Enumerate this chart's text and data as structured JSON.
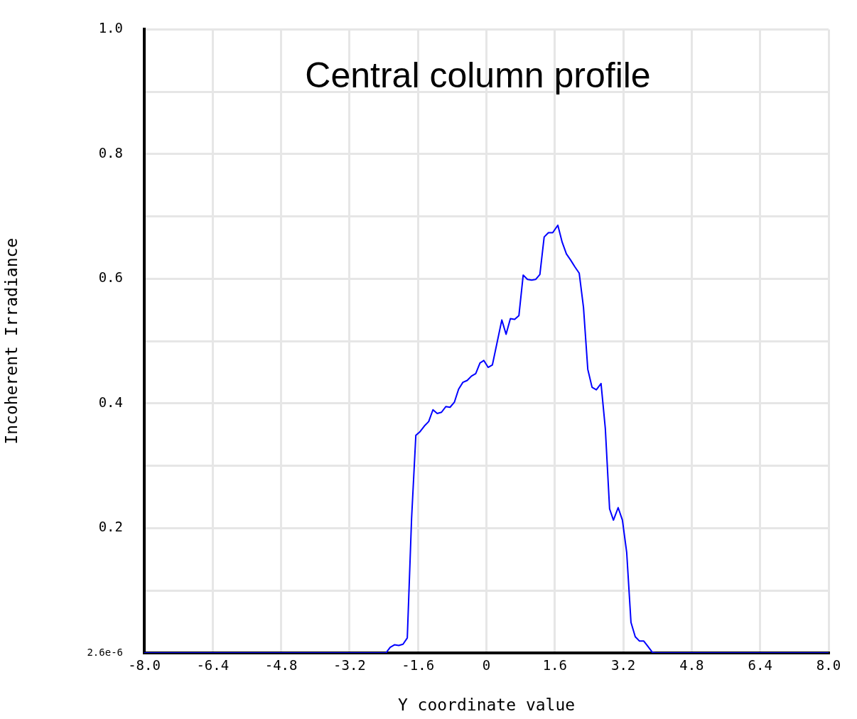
{
  "chart_data": {
    "type": "line",
    "title": "Central column profile",
    "xlabel": "Y coordinate value",
    "ylabel": "Incoherent Irradiance",
    "x": [
      -8,
      -2.35,
      -2.25,
      -2.15,
      -2.05,
      -1.95,
      -1.85,
      -1.75,
      -1.65,
      -1.55,
      -1.45,
      -1.35,
      -1.25,
      -1.15,
      -1.05,
      -0.95,
      -0.85,
      -0.75,
      -0.65,
      -0.55,
      -0.45,
      -0.35,
      -0.25,
      -0.15,
      -0.06,
      0.04,
      0.14,
      0.36,
      0.46,
      0.56,
      0.66,
      0.76,
      0.86,
      0.96,
      1.06,
      1.15,
      1.25,
      1.35,
      1.45,
      1.55,
      1.67,
      1.77,
      1.87,
      1.97,
      2.07,
      2.17,
      2.27,
      2.37,
      2.47,
      2.57,
      2.68,
      2.78,
      2.88,
      2.97,
      3.08,
      3.18,
      3.28,
      3.38,
      3.48,
      3.58,
      3.68,
      3.78,
      3.88,
      3.96,
      8
    ],
    "series": [
      {
        "color": "#0000ff",
        "values": [
          2.6e-06,
          2.6e-06,
          0.009,
          0.013,
          0.012,
          0.014,
          0.024,
          0.215,
          0.349,
          0.355,
          0.364,
          0.371,
          0.39,
          0.384,
          0.386,
          0.395,
          0.394,
          0.402,
          0.423,
          0.434,
          0.437,
          0.444,
          0.448,
          0.465,
          0.469,
          0.458,
          0.462,
          0.534,
          0.511,
          0.536,
          0.535,
          0.541,
          0.606,
          0.599,
          0.598,
          0.599,
          0.607,
          0.667,
          0.674,
          0.674,
          0.686,
          0.659,
          0.64,
          0.63,
          0.619,
          0.609,
          0.554,
          0.455,
          0.426,
          0.422,
          0.432,
          0.36,
          0.231,
          0.213,
          0.233,
          0.213,
          0.161,
          0.049,
          0.026,
          0.019,
          0.019,
          0.01,
          0.001,
          2.6e-06,
          2.6e-06
        ]
      }
    ],
    "xlim": [
      -8,
      8
    ],
    "xticks": [
      {
        "value": -8,
        "label": "-8.0"
      },
      -6.4,
      -4.8,
      -3.2,
      -1.6,
      0,
      1.6,
      3.2,
      4.8,
      6.4,
      {
        "value": 8,
        "label": "8.0"
      }
    ],
    "ylim": [
      2.6e-06,
      1
    ],
    "yticks": [
      {
        "value": 2.6e-06,
        "label": "2.6e-6"
      },
      {
        "value": 0.1,
        "label": null
      },
      0.2,
      {
        "value": 0.3,
        "label": null
      },
      0.4,
      {
        "value": 0.5,
        "label": null
      },
      0.6,
      {
        "value": 0.7,
        "label": null
      },
      0.8,
      {
        "value": 0.9,
        "label": null
      },
      {
        "value": 1,
        "label": "1.0"
      }
    ],
    "grid": true,
    "legend": false,
    "marker": "none",
    "line_style": "solid"
  }
}
